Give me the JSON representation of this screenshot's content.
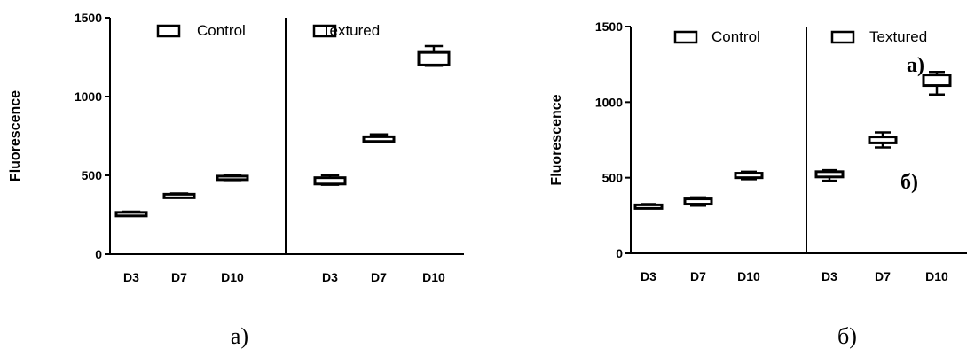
{
  "chart_data": [
    {
      "type": "box",
      "ylabel": "Fluorescence",
      "ylim": [
        0,
        1500
      ],
      "yticks": [
        0,
        500,
        1000,
        1500
      ],
      "groups": [
        "Control",
        "Textured"
      ],
      "categories": [
        "D3",
        "D7",
        "D10"
      ],
      "series": [
        {
          "name": "Control",
          "boxes": [
            {
              "q1": 250,
              "q3": 265,
              "min": 245,
              "max": 270
            },
            {
              "q1": 365,
              "q3": 380,
              "min": 360,
              "max": 385
            },
            {
              "q1": 478,
              "q3": 495,
              "min": 470,
              "max": 500
            }
          ]
        },
        {
          "name": "Textured",
          "boxes": [
            {
              "q1": 445,
              "q3": 485,
              "min": 440,
              "max": 500
            },
            {
              "q1": 715,
              "q3": 745,
              "min": 710,
              "max": 760
            },
            {
              "q1": 1200,
              "q3": 1280,
              "min": 1195,
              "max": 1320
            }
          ]
        }
      ],
      "caption": "а)"
    },
    {
      "type": "box",
      "ylabel": "Fluorescence",
      "ylim": [
        0,
        1500
      ],
      "yticks": [
        0,
        500,
        1000,
        1500
      ],
      "groups": [
        "Control",
        "Textured"
      ],
      "categories": [
        "D3",
        "D7",
        "D10"
      ],
      "series": [
        {
          "name": "Control",
          "boxes": [
            {
              "q1": 305,
              "q3": 320,
              "min": 300,
              "max": 325
            },
            {
              "q1": 325,
              "q3": 360,
              "min": 315,
              "max": 370
            },
            {
              "q1": 500,
              "q3": 530,
              "min": 490,
              "max": 540
            }
          ]
        },
        {
          "name": "Textured",
          "boxes": [
            {
              "q1": 505,
              "q3": 540,
              "min": 480,
              "max": 550
            },
            {
              "q1": 730,
              "q3": 770,
              "min": 700,
              "max": 800
            },
            {
              "q1": 1110,
              "q3": 1180,
              "min": 1050,
              "max": 1200
            }
          ]
        }
      ],
      "caption": "б)",
      "annotations": [
        "а)",
        "б)"
      ]
    }
  ]
}
